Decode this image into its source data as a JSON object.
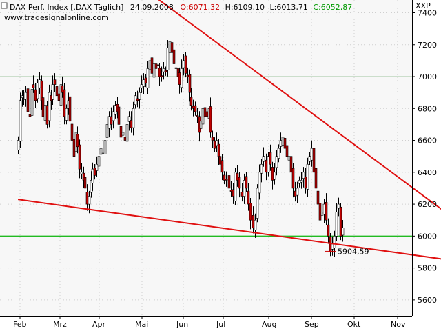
{
  "header": {
    "name": "DAX Perf. Index [.DAX  Täglich]",
    "date": "24.09.2008",
    "open": "O:6071,32",
    "high": "H:6109,10",
    "low": "L:6013,71",
    "close": "C:6052,87",
    "website": "www.tradesignalonline.com",
    "exchange": "XXP"
  },
  "colors": {
    "background": "#f7f7f7",
    "up_candle": "#ffffff",
    "down_candle": "#c00000",
    "trendline": "#e01010",
    "support": "#22bb22",
    "open_color": "#cc0000",
    "close_color": "#009900",
    "annotation": "#cc0000"
  },
  "chart_data": {
    "type": "candlestick",
    "x_labels": [
      "Feb",
      "Mrz",
      "Apr",
      "Mai",
      "Jun",
      "Jul",
      "Aug",
      "Sep",
      "Okt",
      "Nov"
    ],
    "y_ticks": [
      5600,
      5800,
      6000,
      6200,
      6400,
      6600,
      6800,
      7000,
      7200,
      7400
    ],
    "ylim": [
      5500,
      7480
    ],
    "grid": true,
    "annotation": {
      "text": "5904,59",
      "value": 5904.59
    },
    "support_level": 6000,
    "reference_level": 7000,
    "trendlines": [
      {
        "name": "upper",
        "from": {
          "x": 3.0,
          "y": 7560
        },
        "to": {
          "x": 10.45,
          "y": 6080
        }
      },
      {
        "name": "lower",
        "from": {
          "x": -0.05,
          "y": 6230
        },
        "to": {
          "x": 10.45,
          "y": 5840
        }
      }
    ],
    "closes": [
      6600,
      6850,
      6880,
      6860,
      6900,
      6780,
      6750,
      6920,
      6930,
      6850,
      6960,
      6980,
      6850,
      6750,
      6820,
      6700,
      6900,
      6850,
      6950,
      6950,
      6880,
      6850,
      6950,
      6900,
      6750,
      6800,
      6850,
      6720,
      6600,
      6500,
      6650,
      6560,
      6420,
      6400,
      6350,
      6300,
      6200,
      6250,
      6350,
      6420,
      6380,
      6450,
      6500,
      6550,
      6520,
      6600,
      6700,
      6750,
      6700,
      6780,
      6820,
      6780,
      6700,
      6620,
      6650,
      6600,
      6700,
      6750,
      6680,
      6800,
      6880,
      6850,
      6900,
      6950,
      6980,
      6960,
      7050,
      7100,
      7020,
      7080,
      7050,
      7070,
      7000,
      7000,
      7050,
      7030,
      7180,
      7220,
      7150,
      7080,
      7050,
      7000,
      6950,
      7050,
      7100,
      7020,
      7000,
      6900,
      6820,
      6800,
      6780,
      6750,
      6650,
      6720,
      6800,
      6750,
      6750,
      6800,
      6650,
      6600,
      6550,
      6600,
      6500,
      6450,
      6400,
      6350,
      6350,
      6300,
      6280,
      6250,
      6400,
      6350,
      6300,
      6250,
      6350,
      6300,
      6200,
      6100,
      6050,
      6100,
      6300,
      6400,
      6450,
      6500,
      6400,
      6500,
      6450,
      6350,
      6400,
      6500,
      6550,
      6600,
      6620,
      6550,
      6500,
      6500,
      6400,
      6300,
      6250,
      6300,
      6350,
      6350,
      6400,
      6300,
      6450,
      6500,
      6550,
      6400,
      6300,
      6200,
      6100,
      6150,
      6200,
      6100,
      6000,
      5900,
      5950,
      6000,
      6150,
      6200,
      6000,
      6052
    ]
  }
}
